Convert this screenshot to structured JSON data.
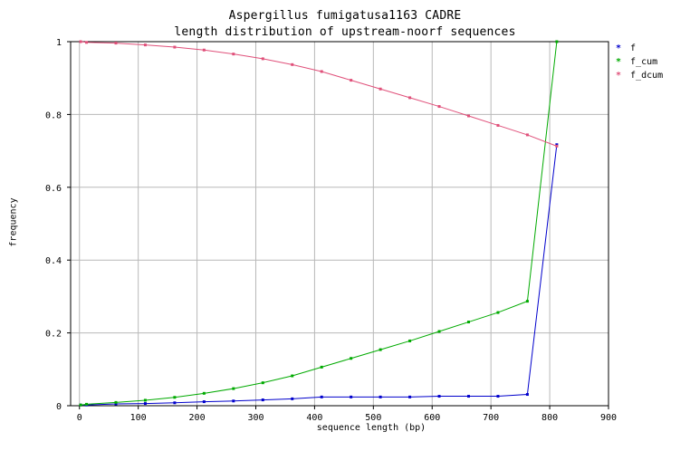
{
  "chart_data": {
    "type": "line",
    "title": "Aspergillus fumigatusa1163 CADRE",
    "subtitle": "length distribution of upstream-noorf sequences",
    "xlabel": "sequence length (bp)",
    "ylabel": "frequency",
    "xlim": [
      -15,
      900
    ],
    "ylim": [
      0,
      1
    ],
    "xticks": [
      0,
      100,
      200,
      300,
      400,
      500,
      600,
      700,
      800,
      900
    ],
    "yticks": [
      0,
      0.2,
      0.4,
      0.6,
      0.8,
      1
    ],
    "yticklabels": [
      "0",
      "0.2",
      "0.4",
      "0.6",
      "0.8",
      "1"
    ],
    "grid": true,
    "legend_position": "top-right",
    "x": [
      2,
      12,
      62,
      112,
      162,
      212,
      262,
      312,
      362,
      412,
      462,
      512,
      562,
      612,
      662,
      712,
      762,
      812
    ],
    "series": [
      {
        "name": "f",
        "color": "#0000cc",
        "values": [
          0.002,
          0.002,
          0.005,
          0.006,
          0.008,
          0.011,
          0.013,
          0.016,
          0.019,
          0.024,
          0.024,
          0.024,
          0.024,
          0.026,
          0.026,
          0.026,
          0.031,
          0.717
        ]
      },
      {
        "name": "f_cum",
        "color": "#00aa00",
        "values": [
          0.002,
          0.004,
          0.009,
          0.015,
          0.023,
          0.034,
          0.047,
          0.063,
          0.082,
          0.106,
          0.13,
          0.154,
          0.178,
          0.204,
          0.23,
          0.256,
          0.287,
          1.0
        ]
      },
      {
        "name": "f_dcum",
        "color": "#e0507a",
        "values": [
          1.0,
          0.998,
          0.996,
          0.991,
          0.985,
          0.977,
          0.966,
          0.953,
          0.937,
          0.918,
          0.894,
          0.87,
          0.846,
          0.822,
          0.796,
          0.77,
          0.744,
          0.713
        ]
      }
    ]
  }
}
